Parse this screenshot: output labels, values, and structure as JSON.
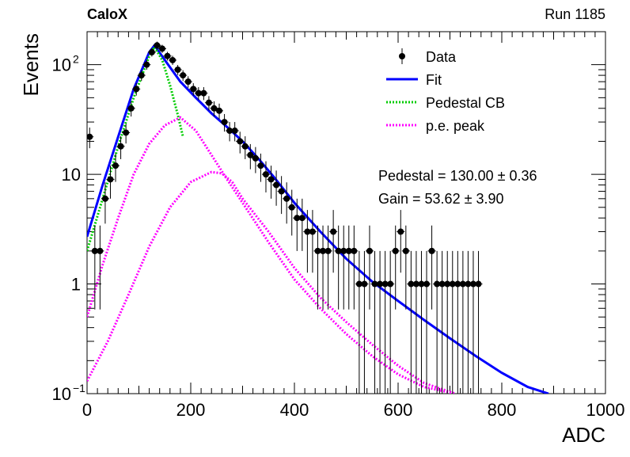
{
  "header": {
    "experiment": "CaloX",
    "run": "Run 1185"
  },
  "chart_data": {
    "type": "scatter",
    "xlabel": "ADC",
    "ylabel": "Events",
    "xlim": [
      0,
      1000
    ],
    "ylim": [
      0.1,
      200
    ],
    "yscale": "log",
    "x_ticks": [
      "0",
      "200",
      "400",
      "600",
      "800",
      "1000"
    ],
    "y_ticks": [
      {
        "value": 0.1,
        "label": "10",
        "exp": "−1"
      },
      {
        "value": 1,
        "label": "1",
        "exp": ""
      },
      {
        "value": 10,
        "label": "10",
        "exp": ""
      },
      {
        "value": 100,
        "label": "10",
        "exp": "2"
      }
    ],
    "legend": {
      "placement": "top-right",
      "entries": [
        {
          "label": "Data",
          "style": "marker",
          "color": "#000000"
        },
        {
          "label": "Fit",
          "style": "line",
          "color": "#0000ff"
        },
        {
          "label": "Pedestal CB",
          "style": "dotted",
          "color": "#00cc00"
        },
        {
          "label": "p.e. peak",
          "style": "dotted",
          "color": "#ff00ff"
        }
      ]
    },
    "annotations": [
      "Pedestal = 130.00 ± 0.36",
      "Gain = 53.62 ± 3.90"
    ],
    "data_points": {
      "x": [
        5,
        15,
        25,
        35,
        45,
        55,
        65,
        75,
        85,
        95,
        105,
        115,
        125,
        135,
        145,
        155,
        165,
        175,
        185,
        195,
        205,
        215,
        225,
        235,
        245,
        255,
        265,
        275,
        285,
        295,
        305,
        315,
        325,
        335,
        345,
        355,
        365,
        375,
        385,
        395,
        405,
        415,
        425,
        435,
        445,
        455,
        465,
        475,
        485,
        495,
        505,
        515,
        525,
        535,
        545,
        555,
        565,
        575,
        585,
        595,
        605,
        615,
        625,
        635,
        645,
        655,
        665,
        675,
        685,
        695,
        705,
        715,
        725,
        735,
        745,
        755
      ],
      "y": [
        22,
        2,
        2,
        6,
        9,
        12,
        18,
        24,
        40,
        60,
        80,
        100,
        130,
        150,
        140,
        120,
        110,
        90,
        80,
        70,
        60,
        55,
        55,
        45,
        40,
        38,
        30,
        25,
        25,
        20,
        18,
        15,
        14,
        12,
        10,
        9,
        8,
        7,
        6,
        5,
        4,
        4,
        3,
        3,
        2,
        2,
        2,
        3,
        2,
        2,
        2,
        2,
        1,
        1,
        2,
        1,
        1,
        1,
        1,
        2,
        3,
        2,
        1,
        1,
        1,
        1,
        2,
        1,
        1,
        1,
        1,
        1,
        1,
        1,
        1,
        1
      ]
    },
    "series": [
      {
        "name": "Fit",
        "color": "#0000ff",
        "x": [
          0,
          30,
          60,
          90,
          120,
          130,
          150,
          180,
          210,
          240,
          270,
          300,
          330,
          360,
          400,
          450,
          500,
          550,
          600,
          650,
          700,
          750,
          800,
          850,
          890
        ],
        "y": [
          2.7,
          8,
          22,
          60,
          130,
          150,
          110,
          70,
          50,
          36,
          27,
          20,
          14,
          9.5,
          5.5,
          3,
          1.7,
          1.05,
          0.7,
          0.47,
          0.32,
          0.22,
          0.155,
          0.115,
          0.1
        ]
      },
      {
        "name": "Pedestal CB",
        "color": "#00cc00",
        "x": [
          0,
          30,
          60,
          90,
          120,
          130,
          145,
          160,
          175,
          185
        ],
        "y": [
          2,
          6,
          18,
          50,
          120,
          145,
          110,
          65,
          35,
          22
        ]
      },
      {
        "name": "p.e. peak",
        "color": "#ff00ff",
        "x": [
          0,
          30,
          60,
          90,
          120,
          150,
          180,
          210,
          240,
          270,
          300,
          350,
          400,
          450,
          500,
          550,
          600,
          650,
          710
        ],
        "y": [
          0.5,
          1.5,
          4,
          10,
          19,
          28,
          33,
          25,
          15,
          9,
          5.5,
          2.4,
          1.1,
          0.6,
          0.35,
          0.22,
          0.15,
          0.115,
          0.1
        ]
      },
      {
        "name": "p.e. peak",
        "color": "#ff00ff",
        "x": [
          0,
          40,
          80,
          120,
          160,
          200,
          240,
          260,
          280,
          300,
          350,
          400,
          450,
          500,
          550,
          600,
          650,
          710
        ],
        "y": [
          0.13,
          0.3,
          0.8,
          2.2,
          5,
          8.5,
          10.5,
          10.2,
          8.5,
          6,
          3,
          1.4,
          0.75,
          0.45,
          0.28,
          0.18,
          0.125,
          0.1
        ]
      }
    ]
  }
}
